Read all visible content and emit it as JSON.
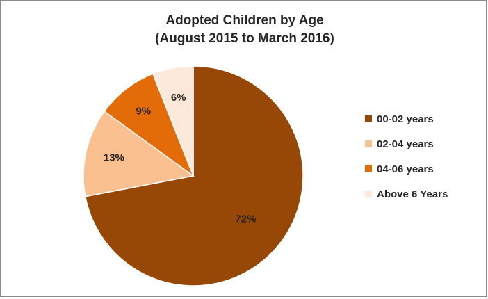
{
  "chart_data": {
    "type": "pie",
    "title": "Adopted Children by Age",
    "subtitle": "(August 2015 to March 2016)",
    "categories": [
      "00-02 years",
      "02-04 years",
      "04-06 years",
      "Above 6 Years"
    ],
    "values": [
      72,
      13,
      9,
      6
    ],
    "labels": [
      "72%",
      "13%",
      "9%",
      "6%"
    ],
    "colors": [
      "#974706",
      "#FAC090",
      "#E36C09",
      "#FDE9D9"
    ],
    "legend": "right"
  }
}
